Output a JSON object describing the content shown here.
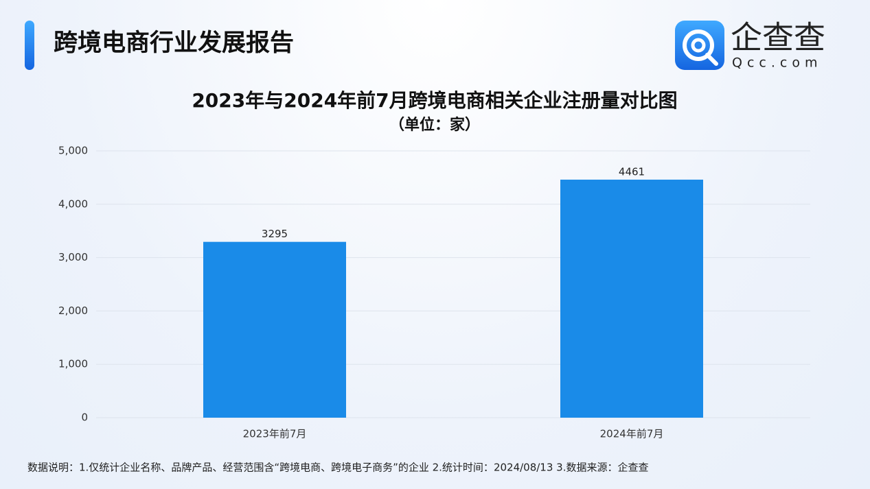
{
  "header": {
    "title": "跨境电商行业发展报告",
    "logo_name": "企查查",
    "logo_domain": "Qcc.com"
  },
  "chart_data": {
    "type": "bar",
    "title": "2023年与2024年前7月跨境电商相关企业注册量对比图",
    "subtitle": "（单位：家）",
    "categories": [
      "2023年前7月",
      "2024年前7月"
    ],
    "values": [
      3295,
      4461
    ],
    "color": "#1a8be8",
    "ylim": [
      0,
      5000
    ],
    "yticks": [
      0,
      {
        "value": 1000,
        "label": "1,000"
      },
      {
        "value": 2000,
        "label": "2,000"
      },
      {
        "value": 3000,
        "label": "3,000"
      },
      {
        "value": 4000,
        "label": "4,000"
      },
      {
        "value": 5000,
        "label": "5,000"
      }
    ],
    "grid": true
  },
  "footnote": "数据说明：1.仅统计企业名称、品牌产品、经营范围含“跨境电商、跨境电子商务”的企业   2.统计时间：2024/08/13    3.数据来源：企查查"
}
